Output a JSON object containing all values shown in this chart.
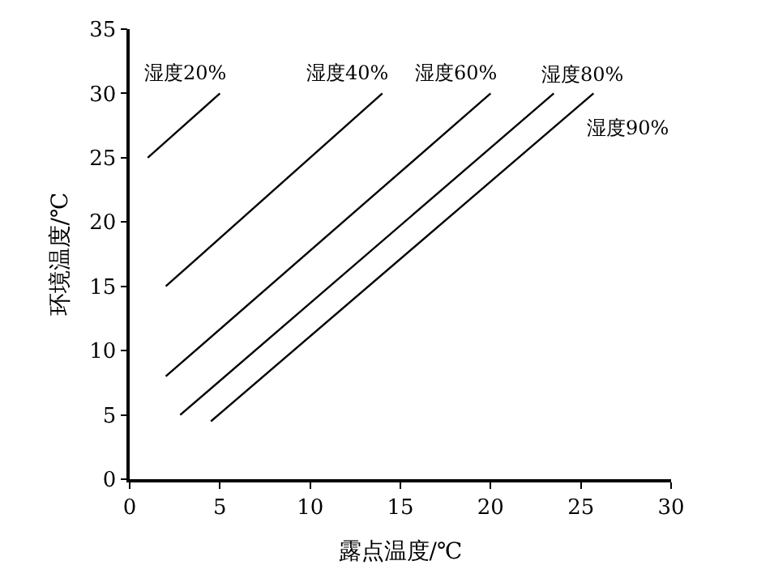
{
  "chart_data": {
    "type": "line",
    "xlabel": "露点温度/℃",
    "ylabel": "环境温度/℃",
    "xlim": [
      0,
      30
    ],
    "ylim": [
      0,
      35
    ],
    "xticks": [
      0,
      5,
      10,
      15,
      20,
      25,
      30
    ],
    "yticks": [
      0,
      5,
      10,
      15,
      20,
      25,
      30,
      35
    ],
    "grid": false,
    "legend": false,
    "marker": "none",
    "line_style": "solid",
    "series": [
      {
        "name": "湿度20%",
        "color": "#000000",
        "x": [
          1,
          5
        ],
        "values": [
          25,
          30
        ]
      },
      {
        "name": "湿度40%",
        "color": "#000000",
        "x": [
          2,
          14
        ],
        "values": [
          15,
          30
        ]
      },
      {
        "name": "湿度60%",
        "color": "#000000",
        "x": [
          2,
          20
        ],
        "values": [
          8,
          30
        ]
      },
      {
        "name": "湿度80%",
        "color": "#000000",
        "x": [
          2.8,
          23.5
        ],
        "values": [
          5,
          30
        ]
      },
      {
        "name": "湿度90%",
        "color": "#000000",
        "x": [
          4.5,
          25.7
        ],
        "values": [
          4.5,
          30
        ]
      }
    ]
  }
}
